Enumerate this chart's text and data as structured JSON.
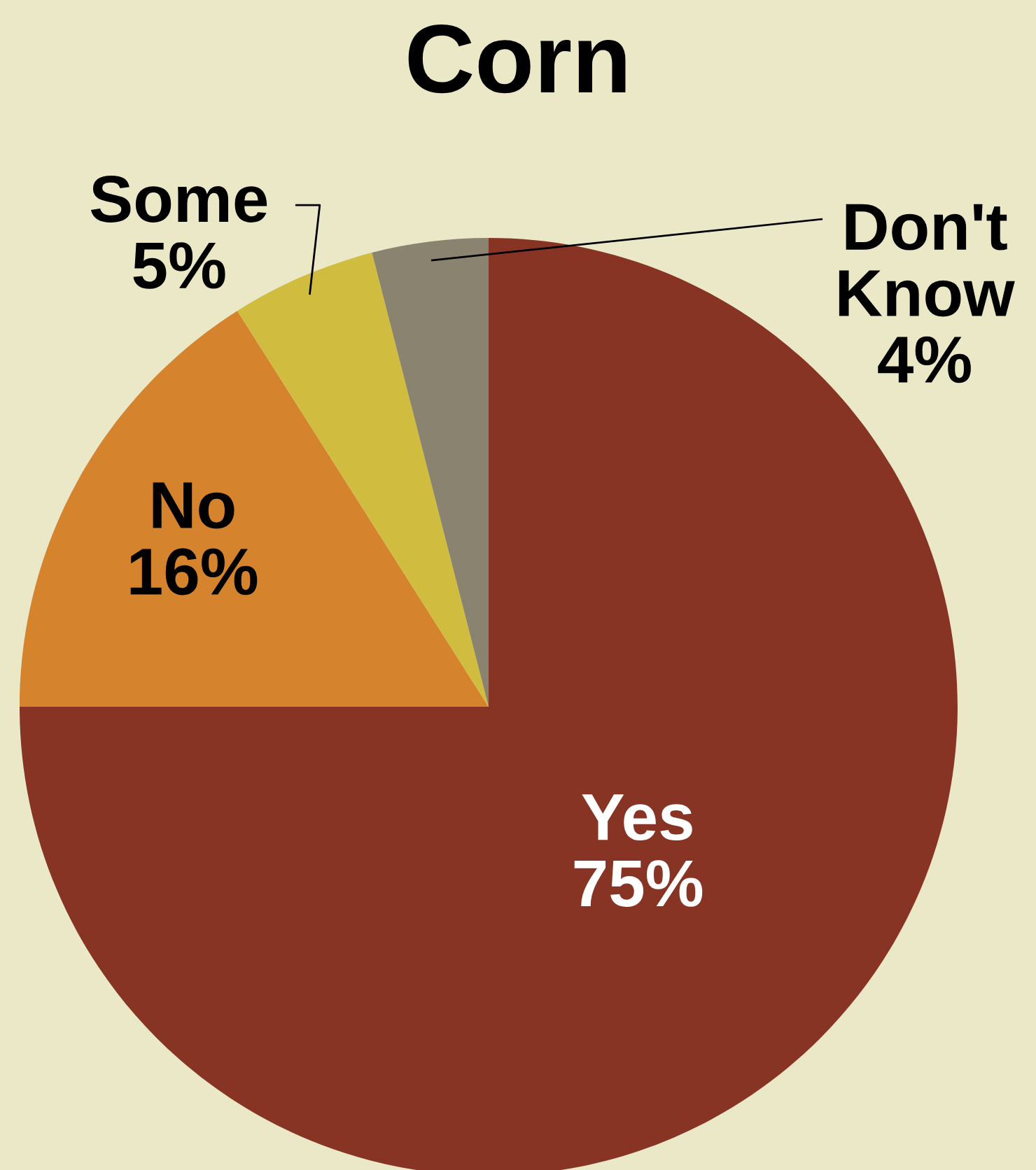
{
  "chart_data": {
    "type": "pie",
    "title": "Corn",
    "categories": [
      "Yes",
      "No",
      "Some",
      "Don't\nKnow"
    ],
    "values": [
      75,
      16,
      5,
      4
    ],
    "value_labels": [
      "75%",
      "16%",
      "5%",
      "4%"
    ],
    "colors": [
      "#873424",
      "#d6832e",
      "#d0bd40",
      "#8a8370"
    ]
  }
}
